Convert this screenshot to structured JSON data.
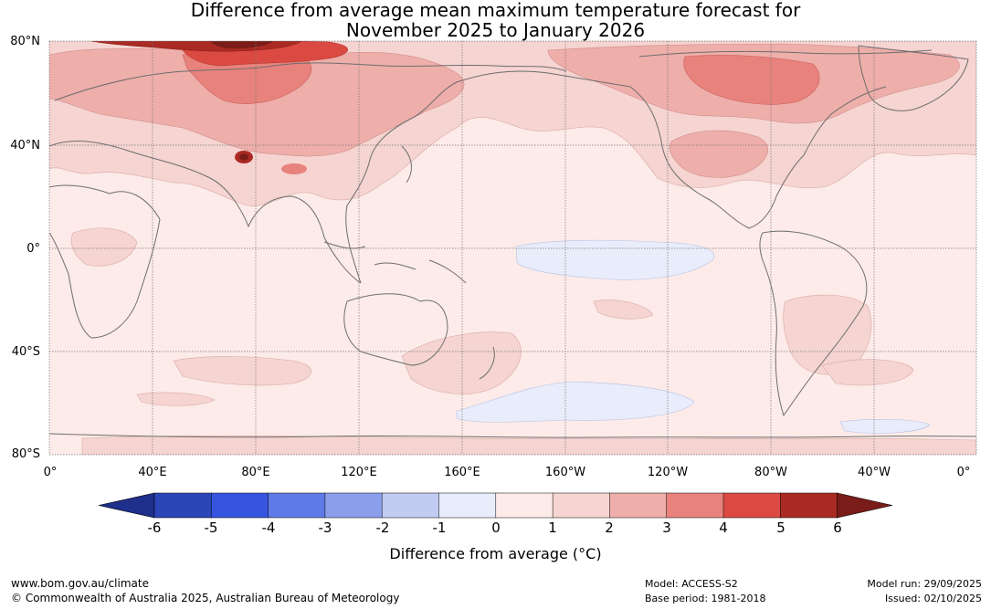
{
  "title": {
    "line1": "Difference from average mean maximum temperature forecast for",
    "line2": "November 2025 to January 2026"
  },
  "map": {
    "lat_labels": [
      "80°N",
      "40°N",
      "0°",
      "40°S",
      "80°S"
    ],
    "lon_labels": [
      "0°",
      "40°E",
      "80°E",
      "120°E",
      "160°E",
      "160°W",
      "120°W",
      "80°W",
      "40°W",
      "0°"
    ]
  },
  "colorbar": {
    "title": "Difference from average (°C)",
    "tick_labels": [
      "-6",
      "-5",
      "-4",
      "-3",
      "-2",
      "-1",
      "0",
      "1",
      "2",
      "3",
      "4",
      "5",
      "6"
    ],
    "colors": [
      "#1f2f8c",
      "#2c46b8",
      "#3555e0",
      "#5f7ae6",
      "#8a9eec",
      "#c2cbf2",
      "#e8ecfb",
      "#fcebe8",
      "#f5d4d1",
      "#eeaeaa",
      "#e8827c",
      "#db4a42",
      "#aa2a24",
      "#7a1c18"
    ]
  },
  "footer": {
    "website": "www.bom.gov.au/climate",
    "copyright": "© Commonwealth of Australia 2025, Australian Bureau of Meteorology",
    "model": "Model: ACCESS-S2",
    "base_period": "Base period: 1981-2018",
    "model_run": "Model run: 29/09/2025",
    "issued": "Issued: 02/10/2025"
  }
}
